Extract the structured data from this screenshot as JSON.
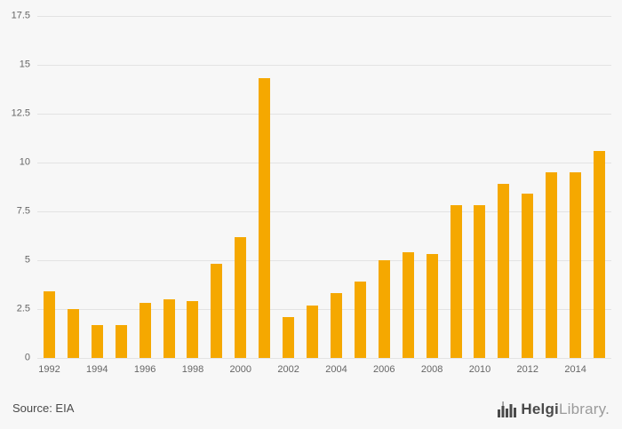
{
  "chart_data": {
    "type": "bar",
    "categories": [
      1992,
      1993,
      1994,
      1995,
      1996,
      1997,
      1998,
      1999,
      2000,
      2001,
      2002,
      2003,
      2004,
      2005,
      2006,
      2007,
      2008,
      2009,
      2010,
      2011,
      2012,
      2013,
      2014,
      2015
    ],
    "values": [
      3.4,
      2.5,
      1.7,
      1.7,
      2.8,
      3.0,
      2.9,
      4.8,
      6.2,
      14.3,
      2.1,
      2.7,
      3.3,
      3.9,
      5.0,
      5.4,
      5.3,
      7.8,
      7.8,
      8.9,
      8.4,
      9.5,
      9.5,
      10.6
    ],
    "title": "",
    "xlabel": "",
    "ylabel": "",
    "ylim": [
      0,
      17.5
    ],
    "yticks": [
      0,
      2.5,
      5,
      7.5,
      10,
      12.5,
      15,
      17.5
    ],
    "x_labeled_every": 2,
    "grid": true,
    "legend": false
  },
  "colors": {
    "background": "#f7f7f7",
    "bar": "#f5a800",
    "gridline": "#e3e3e3",
    "axis_text": "#666666",
    "logo_dark": "#4a4a4a",
    "logo_gray": "#9b9b9b"
  },
  "footer": {
    "source": "Source: EIA",
    "logo_bold": "Helgi",
    "logo_light": "Library."
  }
}
